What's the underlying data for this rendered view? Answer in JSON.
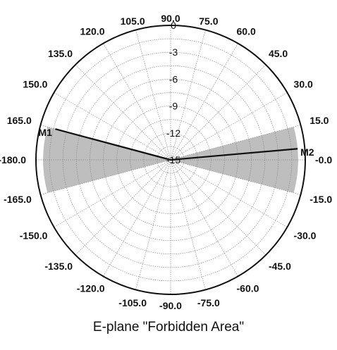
{
  "caption": "E-plane \"Forbidden Area\"",
  "chart_data": {
    "type": "polar",
    "title": "E-plane \"Forbidden Area\"",
    "angle_tick_labels": [
      {
        "angle": 90,
        "text": "90.0"
      },
      {
        "angle": 75,
        "text": "75.0"
      },
      {
        "angle": 60,
        "text": "60.0"
      },
      {
        "angle": 45,
        "text": "45.0"
      },
      {
        "angle": 30,
        "text": "30.0"
      },
      {
        "angle": 15,
        "text": "15.0"
      },
      {
        "angle": 0,
        "text": "-0.0"
      },
      {
        "angle": -15,
        "text": "-15.0"
      },
      {
        "angle": -30,
        "text": "-30.0"
      },
      {
        "angle": -45,
        "text": "-45.0"
      },
      {
        "angle": -60,
        "text": "-60.0"
      },
      {
        "angle": -75,
        "text": "-75.0"
      },
      {
        "angle": -90,
        "text": "-90.0"
      },
      {
        "angle": -105,
        "text": "-105.0"
      },
      {
        "angle": -120,
        "text": "-120.0"
      },
      {
        "angle": -135,
        "text": "-135.0"
      },
      {
        "angle": -150,
        "text": "-150.0"
      },
      {
        "angle": -165,
        "text": "-165.0"
      },
      {
        "angle": 180,
        "text": "-180.0"
      },
      {
        "angle": 165,
        "text": "165.0"
      },
      {
        "angle": 150,
        "text": "150.0"
      },
      {
        "angle": 135,
        "text": "135.0"
      },
      {
        "angle": 120,
        "text": "120.0"
      },
      {
        "angle": 105,
        "text": "105.0"
      }
    ],
    "radial_tick_labels": [
      "0",
      "-3",
      "-6",
      "-9",
      "-12",
      "-15"
    ],
    "radial_range": [
      -15,
      0
    ],
    "grid": true,
    "forbidden_areas": [
      {
        "name": "left",
        "angle_range": [
          165,
          195
        ],
        "radial_range": [
          -15,
          -0.8
        ]
      },
      {
        "name": "right",
        "angle_range": [
          -15,
          15
        ],
        "radial_range": [
          -15,
          -0.8
        ]
      }
    ],
    "series": [
      {
        "points": [
          {
            "angle": 165,
            "value": -1.7
          },
          {
            "angle": 0,
            "value": -15
          },
          {
            "angle": 5,
            "value": -0.8
          }
        ]
      }
    ],
    "markers": [
      {
        "label": "M1",
        "angle": 165,
        "value": -1.7
      },
      {
        "label": "M2",
        "angle": 5,
        "value": -0.8
      }
    ]
  }
}
